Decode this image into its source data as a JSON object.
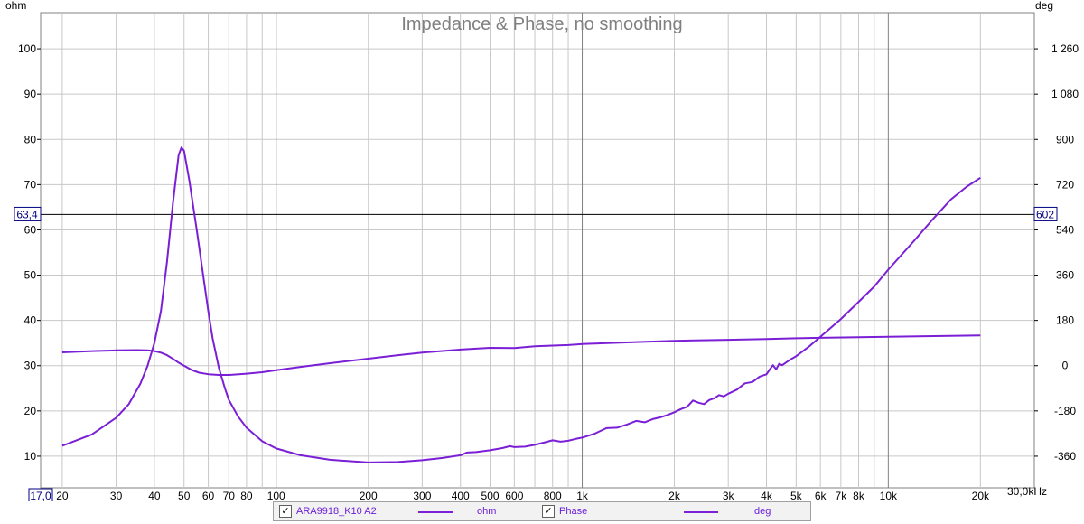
{
  "chart_data": {
    "type": "line",
    "title": "Impedance & Phase, no smoothing",
    "x_scale": "log",
    "xlim": [
      17,
      30000
    ],
    "x_unit_label": "30,0kHz",
    "x_ticks": [
      {
        "v": 17,
        "label": "17,0",
        "boxed": true
      },
      {
        "v": 20,
        "label": "20"
      },
      {
        "v": 30,
        "label": "30"
      },
      {
        "v": 40,
        "label": "40"
      },
      {
        "v": 50,
        "label": "50"
      },
      {
        "v": 60,
        "label": "60"
      },
      {
        "v": 70,
        "label": "70"
      },
      {
        "v": 80,
        "label": "80"
      },
      {
        "v": 100,
        "label": "100"
      },
      {
        "v": 200,
        "label": "200"
      },
      {
        "v": 300,
        "label": "300"
      },
      {
        "v": 400,
        "label": "400"
      },
      {
        "v": 500,
        "label": "500"
      },
      {
        "v": 600,
        "label": "600"
      },
      {
        "v": 800,
        "label": "800"
      },
      {
        "v": 1000,
        "label": "1k"
      },
      {
        "v": 2000,
        "label": "2k"
      },
      {
        "v": 3000,
        "label": "3k"
      },
      {
        "v": 4000,
        "label": "4k"
      },
      {
        "v": 5000,
        "label": "5k"
      },
      {
        "v": 6000,
        "label": "6k"
      },
      {
        "v": 7000,
        "label": "7k"
      },
      {
        "v": 8000,
        "label": "8k"
      },
      {
        "v": 10000,
        "label": "10k"
      },
      {
        "v": 20000,
        "label": "20k"
      }
    ],
    "x_major_grid": [
      100,
      1000,
      10000
    ],
    "x_minor_grid": [
      20,
      30,
      40,
      50,
      60,
      70,
      80,
      90,
      200,
      300,
      400,
      500,
      600,
      700,
      800,
      900,
      2000,
      3000,
      4000,
      5000,
      6000,
      7000,
      8000,
      9000,
      20000
    ],
    "y_left": {
      "label": "ohm",
      "ylim": [
        3,
        108
      ],
      "ticks": [
        10,
        20,
        30,
        40,
        50,
        60,
        70,
        80,
        90,
        100
      ]
    },
    "y_right": {
      "label": "deg",
      "ylim": [
        -486,
        1404
      ],
      "ticks": [
        {
          "v": -360,
          "label": "-360"
        },
        {
          "v": -180,
          "label": "-180"
        },
        {
          "v": 0,
          "label": "0"
        },
        {
          "v": 180,
          "label": "180"
        },
        {
          "v": 360,
          "label": "360"
        },
        {
          "v": 540,
          "label": "540"
        },
        {
          "v": 720,
          "label": "720"
        },
        {
          "v": 900,
          "label": "900"
        },
        {
          "v": 1080,
          "label": "1 080"
        },
        {
          "v": 1260,
          "label": "1 260"
        }
      ]
    },
    "cursor": {
      "left_value": "63,4",
      "right_value": "602",
      "y_ohm": 63.4
    },
    "series": [
      {
        "name": "ARA9918_K10 A2",
        "unit": "ohm",
        "axis": "left",
        "color": "#7a1fd6",
        "x": [
          20,
          25,
          30,
          33,
          36,
          38,
          40,
          42,
          44,
          46,
          48,
          49,
          50,
          52,
          55,
          58,
          60,
          62,
          65,
          68,
          70,
          75,
          80,
          90,
          100,
          120,
          150,
          200,
          250,
          300,
          350,
          400,
          420,
          450,
          500,
          550,
          580,
          600,
          650,
          700,
          750,
          800,
          850,
          900,
          950,
          1000,
          1100,
          1200,
          1300,
          1400,
          1500,
          1600,
          1700,
          1800,
          1900,
          2000,
          2100,
          2200,
          2300,
          2400,
          2500,
          2600,
          2700,
          2800,
          2900,
          3000,
          3200,
          3400,
          3600,
          3800,
          4000,
          4100,
          4200,
          4300,
          4400,
          4500,
          4800,
          5000,
          5500,
          6000,
          7000,
          8000,
          9000,
          10000,
          12000,
          14000,
          16000,
          18000,
          20000
        ],
        "y": [
          12.3,
          14.8,
          18.5,
          21.5,
          26,
          30,
          35,
          42,
          53,
          66,
          76.5,
          78.2,
          77.5,
          71,
          60,
          49,
          42,
          36,
          29.5,
          25,
          22.5,
          18.8,
          16.3,
          13.3,
          11.7,
          10.2,
          9.2,
          8.6,
          8.7,
          9.1,
          9.6,
          10.2,
          10.8,
          10.9,
          11.3,
          11.8,
          12.2,
          12.0,
          12.1,
          12.5,
          13.0,
          13.5,
          13.2,
          13.4,
          13.8,
          14.1,
          15.0,
          16.2,
          16.3,
          17.0,
          17.8,
          17.5,
          18.2,
          18.6,
          19.1,
          19.7,
          20.4,
          20.9,
          22.3,
          21.8,
          21.5,
          22.4,
          22.8,
          23.5,
          23.2,
          23.8,
          24.7,
          26.1,
          26.4,
          27.6,
          28.1,
          29.2,
          30.1,
          29.2,
          30.4,
          30.1,
          31.4,
          32.1,
          34.2,
          36.4,
          40.3,
          44.1,
          47.5,
          51.2,
          57.2,
          62.4,
          66.7,
          69.5,
          71.5
        ]
      },
      {
        "name": "Phase",
        "unit": "deg",
        "axis": "right",
        "color": "#7a1fd6",
        "x": [
          20,
          25,
          30,
          35,
          38,
          40,
          42,
          44,
          46,
          48,
          50,
          53,
          56,
          60,
          65,
          70,
          80,
          90,
          100,
          120,
          150,
          200,
          250,
          300,
          400,
          500,
          600,
          700,
          800,
          900,
          1000,
          1500,
          2000,
          3000,
          4000,
          5000,
          6000,
          8000,
          10000,
          15000,
          20000
        ],
        "y": [
          53,
          58,
          61,
          62,
          61,
          58,
          52,
          42,
          27,
          12,
          0,
          -17,
          -28,
          -34,
          -37,
          -37,
          -32,
          -26,
          -18,
          -5,
          10,
          28,
          42,
          52,
          64,
          71,
          70,
          77,
          80,
          82,
          86,
          94,
          99,
          103,
          106,
          109,
          111,
          113,
          115,
          118,
          120
        ]
      }
    ]
  },
  "legend": {
    "items": [
      {
        "checked": "✓",
        "name": "ARA9918_K10 A2",
        "unit": "ohm"
      },
      {
        "checked": "✓",
        "name": "Phase",
        "unit": "deg"
      }
    ]
  }
}
